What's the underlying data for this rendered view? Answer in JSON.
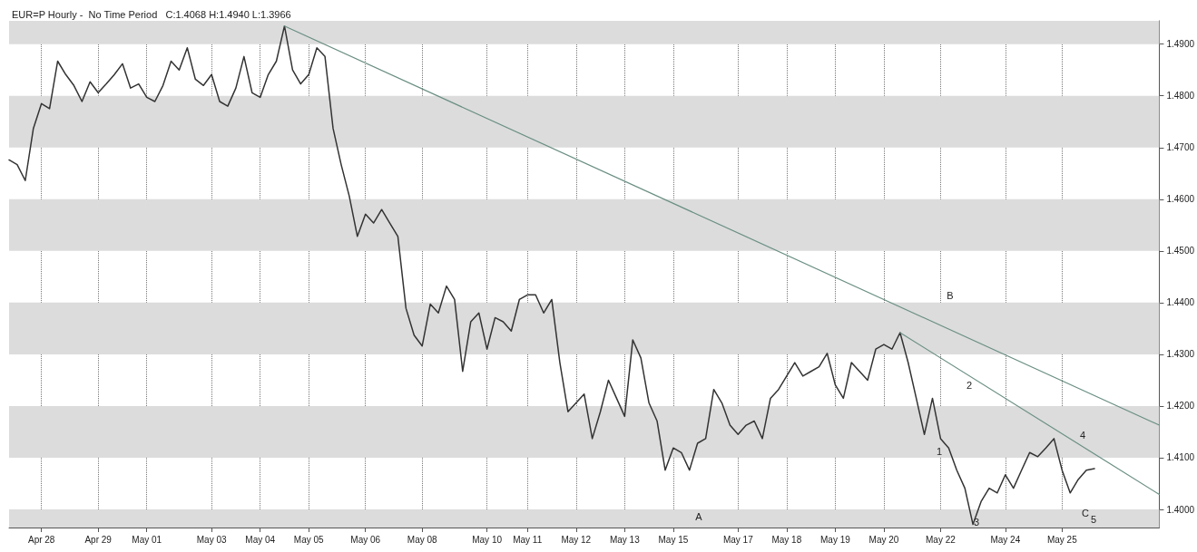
{
  "chart_data": {
    "type": "line",
    "title": "EUR=P Hourly -  No Time Period   C:1.4068 H:1.4940 L:1.3966",
    "categories": [
      null,
      null,
      null,
      null,
      "Apr 28",
      null,
      null,
      null,
      null,
      null,
      null,
      "Apr 29",
      null,
      null,
      null,
      null,
      null,
      "May 01",
      null,
      null,
      null,
      null,
      null,
      null,
      null,
      "May 03",
      null,
      null,
      null,
      null,
      null,
      "May 04",
      null,
      null,
      null,
      null,
      null,
      "May 05",
      null,
      null,
      null,
      null,
      null,
      null,
      "May 06",
      null,
      null,
      null,
      null,
      null,
      null,
      "May 08",
      null,
      null,
      null,
      null,
      null,
      null,
      null,
      "May 10",
      null,
      null,
      null,
      null,
      "May 11",
      null,
      null,
      null,
      null,
      null,
      "May 12",
      null,
      null,
      null,
      null,
      null,
      "May 13",
      null,
      null,
      null,
      null,
      null,
      "May 15",
      null,
      null,
      null,
      null,
      null,
      null,
      null,
      "May 17",
      null,
      null,
      null,
      null,
      null,
      "May 18",
      null,
      null,
      null,
      null,
      null,
      "May 19",
      null,
      null,
      null,
      null,
      null,
      "May 20",
      null,
      null,
      null,
      null,
      null,
      null,
      "May 22",
      null,
      null,
      null,
      null,
      null,
      null,
      null,
      "May 24",
      null,
      null,
      null,
      null,
      null,
      null,
      "May 25",
      null,
      null,
      null,
      null,
      null,
      null,
      null,
      null,
      null,
      null,
      null,
      null
    ],
    "ylim": [
      1.3965,
      1.4945
    ],
    "yticks": [
      {
        "value": 1.4,
        "label": "1.4000"
      },
      {
        "value": 1.41,
        "label": "1.4100"
      },
      {
        "value": 1.42,
        "label": "1.4200"
      },
      {
        "value": 1.43,
        "label": "1.4300"
      },
      {
        "value": 1.44,
        "label": "1.4400"
      },
      {
        "value": 1.45,
        "label": "1.4500"
      },
      {
        "value": 1.46,
        "label": "1.4600"
      },
      {
        "value": 1.47,
        "label": "1.4700"
      },
      {
        "value": 1.48,
        "label": "1.4800"
      },
      {
        "value": 1.49,
        "label": "1.4900"
      }
    ],
    "grid": "x",
    "marker": "none",
    "line_style": "solid",
    "bands": [
      {
        "axis": "y",
        "from": 1.3965,
        "to": 1.4,
        "color": "#dcdcdc"
      },
      {
        "axis": "y",
        "from": 1.41,
        "to": 1.42,
        "color": "#dcdcdc"
      },
      {
        "axis": "y",
        "from": 1.43,
        "to": 1.44,
        "color": "#dcdcdc"
      },
      {
        "axis": "y",
        "from": 1.45,
        "to": 1.46,
        "color": "#dcdcdc"
      },
      {
        "axis": "y",
        "from": 1.47,
        "to": 1.48,
        "color": "#dcdcdc"
      },
      {
        "axis": "y",
        "from": 1.49,
        "to": 1.4945,
        "color": "#dcdcdc"
      }
    ],
    "annotations": [
      "A",
      "B",
      "C",
      "1",
      "2",
      "3",
      "4",
      "5"
    ],
    "series": [
      {
        "color": "#333333",
        "values": [
          1.4676,
          1.4667,
          1.4636,
          1.4737,
          1.4785,
          1.4775,
          1.4867,
          1.4841,
          1.482,
          1.4789,
          1.4827,
          1.4806,
          1.4823,
          1.4841,
          1.4862,
          1.4815,
          1.4823,
          1.4797,
          1.4789,
          1.482,
          1.4867,
          1.485,
          1.4893,
          1.4832,
          1.482,
          1.4841,
          1.4789,
          1.478,
          1.4815,
          1.4876,
          1.4806,
          1.4797,
          1.4841,
          1.4867,
          1.4935,
          1.485,
          1.4823,
          1.4841,
          1.4893,
          1.4876,
          1.4737,
          1.4667,
          1.4606,
          1.4528,
          1.4571,
          1.4554,
          1.458,
          1.4554,
          1.4528,
          1.4389,
          1.4337,
          1.4316,
          1.4397,
          1.438,
          1.4432,
          1.4406,
          1.4267,
          1.4363,
          1.438,
          1.431,
          1.4371,
          1.4363,
          1.4345,
          1.4406,
          1.4415,
          1.4415,
          1.438,
          1.4406,
          1.4284,
          1.4189,
          1.4206,
          1.4223,
          1.4137,
          1.4189,
          1.425,
          1.4215,
          1.418,
          1.4328,
          1.4293,
          1.4206,
          1.4171,
          1.4076,
          1.4119,
          1.411,
          1.4076,
          1.4128,
          1.4137,
          1.4232,
          1.4206,
          1.4163,
          1.4145,
          1.4163,
          1.4171,
          1.4137,
          1.4215,
          1.4232,
          1.4258,
          1.4284,
          1.4258,
          1.4267,
          1.4276,
          1.4302,
          1.4241,
          1.4215,
          1.4284,
          1.4267,
          1.425,
          1.431,
          1.4319,
          1.431,
          1.4342,
          1.4284,
          1.4215,
          1.4145,
          1.4215,
          1.4137,
          1.4119,
          1.4076,
          1.4041,
          1.3971,
          1.4015,
          1.4041,
          1.4032,
          1.4067,
          1.4041,
          1.4076,
          1.411,
          1.4102,
          1.4119,
          1.4137,
          1.4076,
          1.4032,
          1.4058,
          1.4076,
          1.4079,
          null,
          null,
          null,
          null,
          null,
          null,
          null,
          null
        ]
      },
      {
        "color": "#6a8f84",
        "values": [
          null,
          null,
          null,
          null,
          null,
          null,
          null,
          null,
          null,
          null,
          null,
          null,
          null,
          null,
          null,
          null,
          null,
          null,
          null,
          null,
          null,
          null,
          null,
          null,
          null,
          null,
          null,
          null,
          null,
          null,
          null,
          null,
          null,
          null,
          1.4935,
          null,
          null,
          null,
          null,
          null,
          null,
          null,
          null,
          null,
          null,
          null,
          null,
          null,
          null,
          null,
          null,
          null,
          null,
          null,
          null,
          null,
          null,
          null,
          null,
          null,
          null,
          null,
          null,
          null,
          null,
          null,
          null,
          null,
          null,
          null,
          null,
          null,
          null,
          null,
          null,
          null,
          null,
          null,
          null,
          null,
          null,
          null,
          null,
          null,
          null,
          null,
          null,
          null,
          null,
          null,
          null,
          null,
          null,
          null,
          null,
          null,
          null,
          null,
          null,
          null,
          null,
          null,
          null,
          null,
          null,
          null,
          null,
          null,
          null,
          null,
          null,
          null,
          null,
          null,
          null,
          null,
          null,
          null,
          null,
          null,
          null,
          null,
          null,
          null,
          null,
          null,
          null,
          null,
          null,
          null,
          null,
          null,
          null,
          null,
          null,
          null,
          null,
          null,
          null,
          null,
          null,
          null,
          1.4163
        ]
      },
      {
        "color": "#6a8f84",
        "values": [
          null,
          null,
          null,
          null,
          null,
          null,
          null,
          null,
          null,
          null,
          null,
          null,
          null,
          null,
          null,
          null,
          null,
          null,
          null,
          null,
          null,
          null,
          null,
          null,
          null,
          null,
          null,
          null,
          null,
          null,
          null,
          null,
          null,
          null,
          null,
          null,
          null,
          null,
          null,
          null,
          null,
          null,
          null,
          null,
          null,
          null,
          null,
          null,
          null,
          null,
          null,
          null,
          null,
          null,
          null,
          null,
          null,
          null,
          null,
          null,
          null,
          null,
          null,
          null,
          null,
          null,
          null,
          null,
          null,
          null,
          null,
          null,
          null,
          null,
          null,
          null,
          null,
          null,
          null,
          null,
          null,
          null,
          null,
          null,
          null,
          null,
          null,
          null,
          null,
          null,
          null,
          null,
          null,
          null,
          null,
          null,
          null,
          null,
          null,
          null,
          null,
          null,
          null,
          null,
          null,
          null,
          null,
          null,
          null,
          null,
          1.4342,
          null,
          null,
          null,
          null,
          null,
          null,
          null,
          null,
          null,
          null,
          null,
          null,
          null,
          null,
          null,
          null,
          null,
          null,
          null,
          null,
          null,
          null,
          null,
          null,
          null,
          null,
          null,
          null,
          null,
          null,
          null,
          1.4029
        ]
      }
    ]
  }
}
